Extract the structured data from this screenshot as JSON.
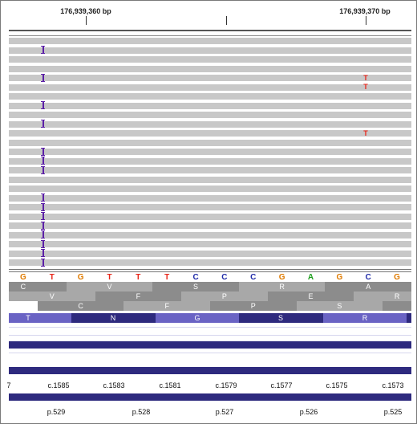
{
  "ruler": {
    "left_label": "176,939,360 bp",
    "right_label": "176,939,370 bp"
  },
  "colors": {
    "read": "#c8c8c8",
    "insertion": "#5b1fa6",
    "mismatch": "#e8261a",
    "base_G": "#e07b00",
    "base_T": "#e8261a",
    "base_C": "#1f2aa8",
    "base_A": "#1ea01e",
    "exon_light": "#6a63c4",
    "exon_dark": "#2e2a7e"
  },
  "alignment": {
    "insertion_symbol": "I",
    "insertion_rows": [
      1,
      4,
      7,
      9,
      12,
      13,
      14,
      17,
      18,
      19,
      20,
      21,
      22,
      23,
      24
    ],
    "mismatches": [
      {
        "row": 4,
        "base": "T"
      },
      {
        "row": 5,
        "base": "T"
      },
      {
        "row": 10,
        "base": "T"
      }
    ]
  },
  "sequence": {
    "bases": [
      "G",
      "T",
      "G",
      "T",
      "T",
      "T",
      "C",
      "C",
      "C",
      "G",
      "A",
      "G",
      "C",
      "G"
    ]
  },
  "translation": {
    "frame1": [
      "C",
      "",
      "",
      "V",
      "",
      "",
      "S",
      "",
      "",
      "R",
      "",
      "",
      "A",
      ""
    ],
    "frame2": [
      "",
      "V",
      "",
      "",
      "F",
      "",
      "",
      "P",
      "",
      "",
      "E",
      "",
      "",
      "R"
    ],
    "frame3": [
      "",
      "",
      "C",
      "",
      "",
      "F",
      "",
      "",
      "P",
      "",
      "",
      "S",
      "",
      ""
    ]
  },
  "gene": {
    "exon_labels": [
      "T",
      "N",
      "G",
      "S",
      "R"
    ]
  },
  "cdna_labels": [
    "7",
    "c.1585",
    "c.1583",
    "c.1581",
    "c.1579",
    "c.1577",
    "c.1575",
    "c.1573"
  ],
  "protein_labels": [
    "p.529",
    "p.528",
    "p.527",
    "p.526",
    "p.525"
  ]
}
